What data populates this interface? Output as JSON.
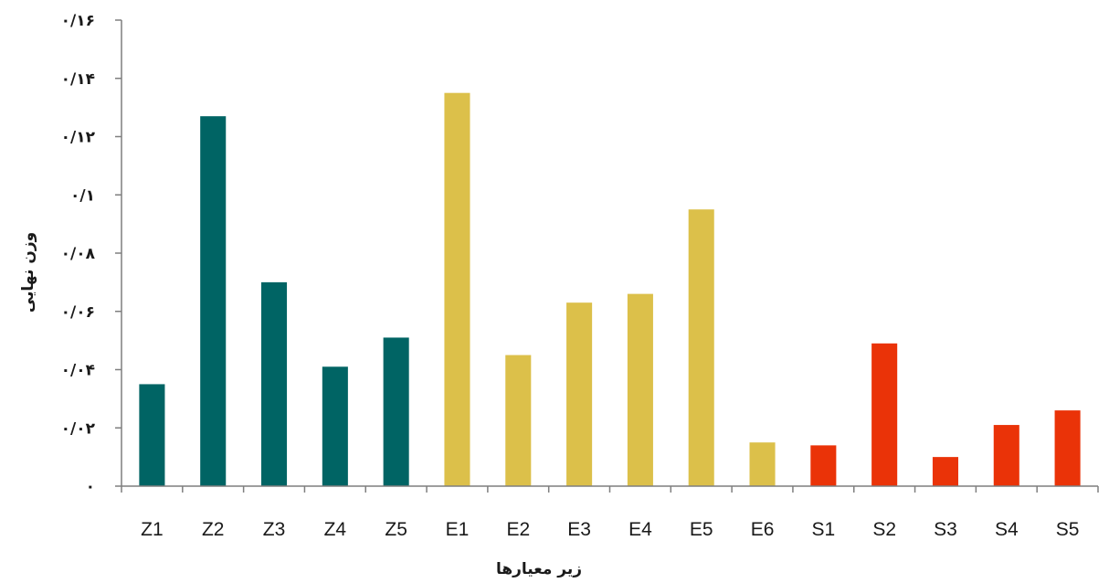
{
  "chart_data": {
    "type": "bar",
    "xlabel": "زیر معیارها",
    "ylabel": "وزن نهایی",
    "ylim": [
      0,
      0.16
    ],
    "y_ticks": [
      0,
      0.02,
      0.04,
      0.06,
      0.08,
      0.1,
      0.12,
      0.14,
      0.16
    ],
    "y_tick_labels": [
      "۰",
      "۰/۰۲",
      "۰/۰۴",
      "۰/۰۶",
      "۰/۰۸",
      "۰/۱",
      "۰/۱۲",
      "۰/۱۴",
      "۰/۱۶"
    ],
    "grid": false,
    "legend": "none",
    "categories": [
      "Z1",
      "Z2",
      "Z3",
      "Z4",
      "Z5",
      "E1",
      "E2",
      "E3",
      "E4",
      "E5",
      "E6",
      "S1",
      "S2",
      "S3",
      "S4",
      "S5"
    ],
    "values": [
      0.035,
      0.127,
      0.07,
      0.041,
      0.051,
      0.135,
      0.045,
      0.063,
      0.066,
      0.095,
      0.015,
      0.014,
      0.049,
      0.01,
      0.021,
      0.026
    ],
    "bar_colors": [
      "#006464",
      "#006464",
      "#006464",
      "#006464",
      "#006464",
      "#dcc04a",
      "#dcc04a",
      "#dcc04a",
      "#dcc04a",
      "#dcc04a",
      "#dcc04a",
      "#ea3308",
      "#ea3308",
      "#ea3308",
      "#ea3308",
      "#ea3308"
    ]
  }
}
